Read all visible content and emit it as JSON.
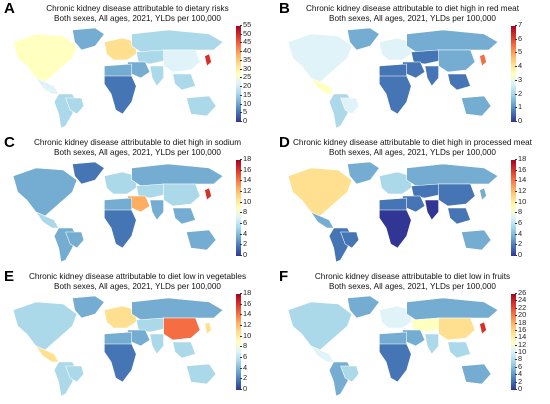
{
  "palette": [
    "#313695",
    "#4575b4",
    "#74add1",
    "#abd9e9",
    "#e0f3f8",
    "#ffffbf",
    "#fee090",
    "#fdae61",
    "#f46d43",
    "#d73027",
    "#a50026"
  ],
  "panels": [
    {
      "letter": "A",
      "title1": "Chronic kidney disease attributable to dietary risks",
      "title2": "Both sexes, All ages, 2021, YLDs per 100,000",
      "ticks": [
        "55",
        "50",
        "45",
        "40",
        "35",
        "30",
        "25",
        "20",
        "15",
        "10",
        "5",
        "0"
      ],
      "regions": {
        "north_america": 5,
        "greenland": 2,
        "central_america": 4,
        "south_america": 3,
        "brazil": 3,
        "europe": 6,
        "russia": 3,
        "central_asia": 3,
        "middle_east": 2,
        "north_africa": 2,
        "sub_saharan_africa": 1,
        "south_asia": 3,
        "china": 4,
        "japan": 9,
        "se_asia": 3,
        "australia": 3
      }
    },
    {
      "letter": "B",
      "title1": "Chronic kidney disease attributable to diet high in red meat",
      "title2": "Both sexes, All ages, 2021, YLDs per 100,000",
      "ticks": [
        "7",
        "6",
        "5",
        "4",
        "3",
        "2",
        "1",
        "0"
      ],
      "regions": {
        "north_america": 4,
        "greenland": 2,
        "central_america": 5,
        "south_america": 3,
        "brazil": 4,
        "europe": 4,
        "russia": 2,
        "central_asia": 1,
        "middle_east": 1,
        "north_africa": 1,
        "sub_saharan_africa": 1,
        "south_asia": 1,
        "china": 2,
        "japan": 8,
        "se_asia": 1,
        "australia": 2
      }
    },
    {
      "letter": "C",
      "title1": "Chronic kidney disease attributable to diet high in sodium",
      "title2": "Both sexes, All ages, 2021, YLDs per 100,000",
      "ticks": [
        "18",
        "16",
        "14",
        "12",
        "10",
        "8",
        "6",
        "4",
        "2",
        "0"
      ],
      "regions": {
        "north_america": 2,
        "greenland": 1,
        "central_america": 3,
        "south_america": 2,
        "brazil": 2,
        "europe": 3,
        "russia": 2,
        "central_asia": 3,
        "middle_east": 7,
        "north_africa": 2,
        "sub_saharan_africa": 1,
        "south_asia": 2,
        "china": 3,
        "japan": 9,
        "se_asia": 2,
        "australia": 2
      }
    },
    {
      "letter": "D",
      "title1": "Chronic kidney disease attributable to diet high in processed meat",
      "title2": "Both sexes, All ages, 2021, YLDs per 100,000",
      "ticks": [
        "18",
        "16",
        "14",
        "12",
        "10",
        "8",
        "6",
        "4",
        "2",
        "0"
      ],
      "regions": {
        "north_america": 6,
        "greenland": 2,
        "central_america": 2,
        "south_america": 1,
        "brazil": 1,
        "europe": 3,
        "russia": 2,
        "central_asia": 1,
        "middle_east": 1,
        "north_africa": 1,
        "sub_saharan_africa": 0,
        "south_asia": 0,
        "china": 1,
        "japan": 2,
        "se_asia": 1,
        "australia": 2
      }
    },
    {
      "letter": "E",
      "title1": "Chronic kidney disease attributable to diet low in vegetables",
      "title2": "Both sexes, All ages, 2021, YLDs per 100,000",
      "ticks": [
        "18",
        "16",
        "14",
        "12",
        "10",
        "8",
        "6",
        "4",
        "2",
        "0"
      ],
      "regions": {
        "north_america": 3,
        "greenland": 2,
        "central_america": 6,
        "south_america": 3,
        "brazil": 3,
        "europe": 6,
        "russia": 2,
        "central_asia": 3,
        "middle_east": 2,
        "north_africa": 2,
        "sub_saharan_africa": 1,
        "south_asia": 3,
        "china": 8,
        "japan": 6,
        "se_asia": 3,
        "australia": 3
      }
    },
    {
      "letter": "F",
      "title1": "Chronic kidney disease attributable to diet low in fruits",
      "title2": "Both sexes, All ages, 2021, YLDs per 100,000",
      "ticks": [
        "26",
        "24",
        "22",
        "20",
        "18",
        "16",
        "14",
        "12",
        "10",
        "8",
        "6",
        "4",
        "2",
        "0"
      ],
      "regions": {
        "north_america": 3,
        "greenland": 2,
        "central_america": 4,
        "south_america": 2,
        "brazil": 3,
        "europe": 4,
        "russia": 2,
        "central_asia": 5,
        "middle_east": 2,
        "north_africa": 2,
        "sub_saharan_africa": 1,
        "south_asia": 3,
        "china": 6,
        "japan": 9,
        "se_asia": 3,
        "australia": 2
      }
    }
  ]
}
